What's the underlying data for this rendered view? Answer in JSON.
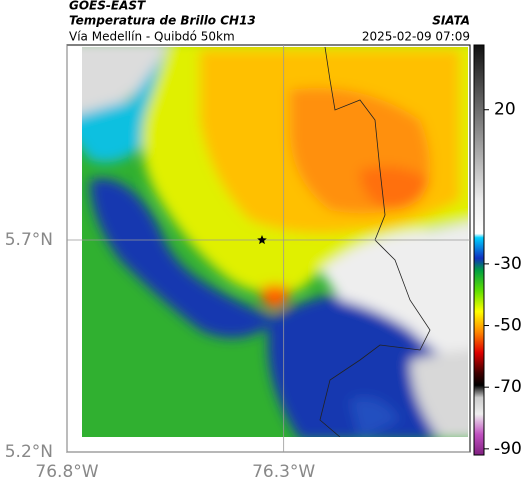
{
  "header": {
    "satellite": "GOES-EAST",
    "title": "Temperatura de Brillo CH13",
    "subtitle": "Vía Medellín - Quibdó 50km",
    "source": "SIATA",
    "timestamp": "2025-02-09 07:09"
  },
  "map": {
    "lonlim": [
      -76.8,
      -75.87
    ],
    "latlim": [
      5.2,
      6.16
    ],
    "lonticks": [
      {
        "value": -76.8,
        "label": "76.8°W"
      },
      {
        "value": -76.3,
        "label": "76.3°W"
      }
    ],
    "latticks": [
      {
        "value": 5.2,
        "label": "5.2°N"
      },
      {
        "value": 5.7,
        "label": "5.7°N"
      }
    ],
    "marker": {
      "lon": -76.35,
      "lat": 5.7
    }
  },
  "colorbar": {
    "lim": [
      41,
      -92
    ],
    "ticks": [
      20,
      -30,
      -50,
      -70,
      -90
    ]
  }
}
